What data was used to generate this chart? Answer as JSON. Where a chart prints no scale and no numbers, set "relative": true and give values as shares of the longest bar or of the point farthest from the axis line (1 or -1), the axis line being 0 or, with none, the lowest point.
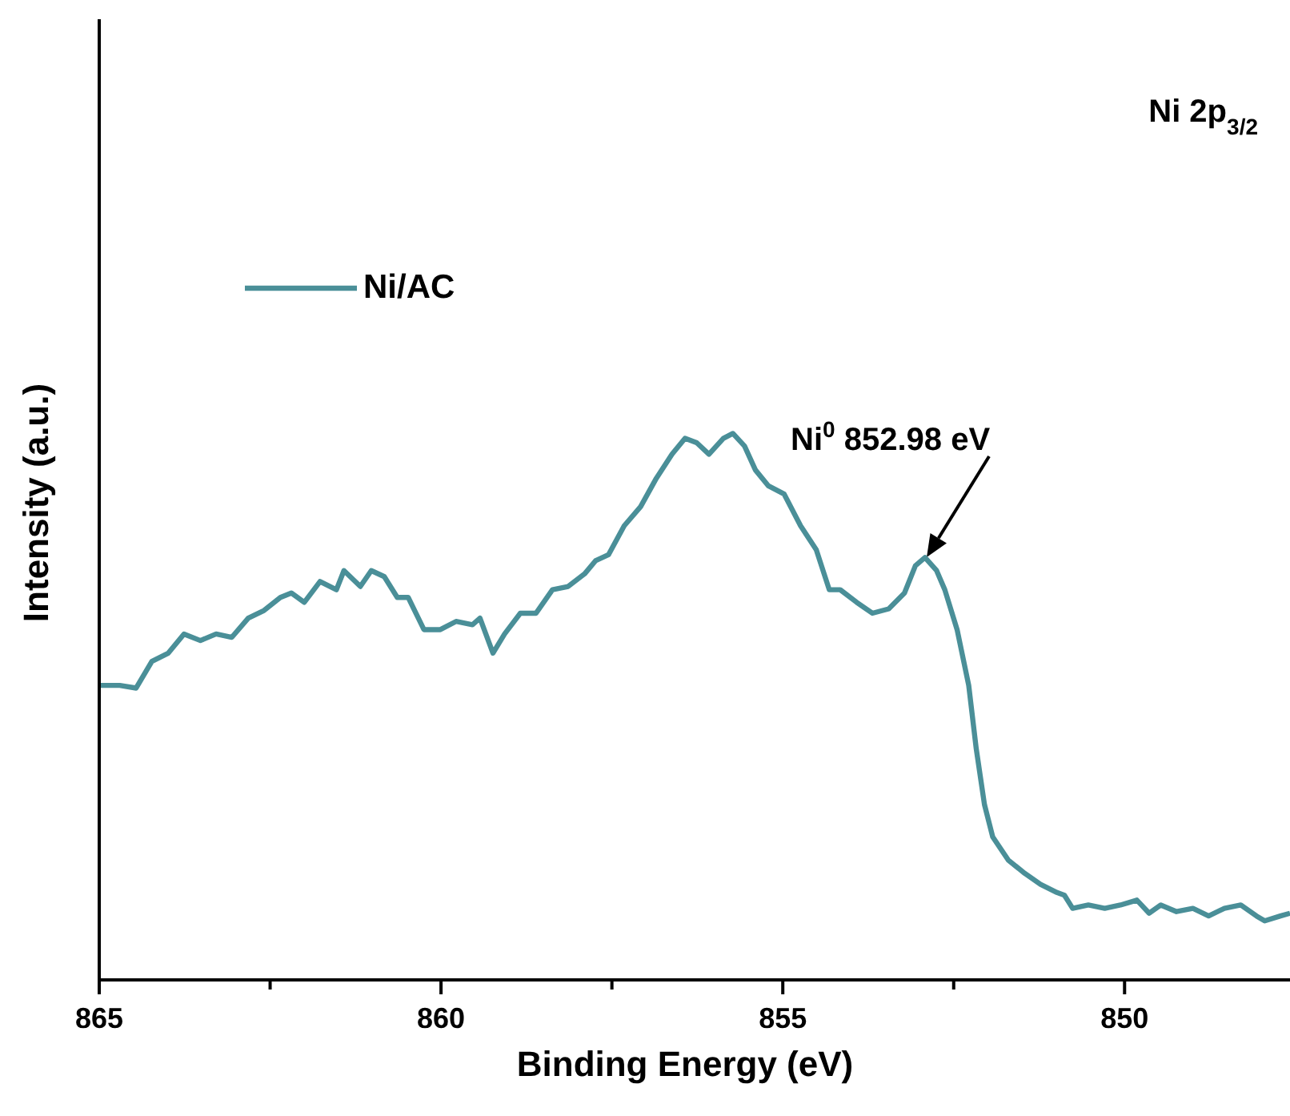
{
  "chart_data": {
    "type": "line",
    "title": "Ni 2p$_{3/2}$",
    "xlabel": "Binding Energy (eV)",
    "ylabel": "Intensity (a.u.)",
    "relative": true,
    "legend": "top left",
    "grid": false,
    "marker": "none",
    "line_style": "solid",
    "xlim": [
      865,
      847.58
    ],
    "xticks": [
      865,
      {
        "value": 862.5,
        "label": null
      },
      860,
      {
        "value": 857.5,
        "label": null
      },
      855,
      {
        "value": 852.5,
        "label": null
      },
      850
    ],
    "annotations": [
      "Ni$^{0}$ 852.98 eV"
    ],
    "series": [
      {
        "name": "Ni/AC",
        "color": "#4a8f98",
        "x": [
          865.0,
          864.7,
          864.46,
          864.23,
          863.99,
          863.76,
          863.52,
          863.29,
          863.06,
          862.82,
          862.59,
          862.35,
          862.19,
          862.0,
          861.77,
          861.53,
          861.42,
          861.18,
          861.02,
          860.83,
          860.64,
          860.48,
          860.25,
          860.01,
          859.78,
          859.54,
          859.43,
          859.24,
          859.07,
          858.84,
          858.61,
          858.37,
          858.14,
          857.9,
          857.74,
          857.55,
          857.32,
          857.08,
          856.85,
          856.62,
          856.43,
          856.26,
          856.08,
          855.87,
          855.73,
          855.56,
          855.4,
          855.21,
          854.98,
          854.74,
          854.51,
          854.32,
          854.16,
          853.92,
          853.69,
          853.45,
          853.22,
          853.06,
          852.92,
          852.75,
          852.63,
          852.45,
          852.28,
          852.17,
          852.05,
          851.93,
          851.7,
          851.46,
          851.23,
          850.99,
          850.88,
          850.76,
          850.53,
          850.29,
          850.06,
          849.82,
          849.64,
          849.47,
          849.24,
          849.0,
          848.77,
          848.54,
          848.3,
          848.07,
          847.95,
          847.72,
          847.58
        ],
        "values": [
          0.539,
          0.539,
          0.534,
          0.583,
          0.598,
          0.633,
          0.621,
          0.633,
          0.627,
          0.662,
          0.676,
          0.7,
          0.708,
          0.691,
          0.729,
          0.714,
          0.749,
          0.72,
          0.749,
          0.738,
          0.7,
          0.7,
          0.641,
          0.641,
          0.656,
          0.65,
          0.662,
          0.598,
          0.633,
          0.671,
          0.671,
          0.714,
          0.72,
          0.743,
          0.767,
          0.778,
          0.831,
          0.866,
          0.918,
          0.962,
          0.991,
          0.983,
          0.962,
          0.991,
          1,
          0.977,
          0.933,
          0.904,
          0.889,
          0.831,
          0.787,
          0.714,
          0.714,
          0.691,
          0.671,
          0.679,
          0.708,
          0.758,
          0.773,
          0.749,
          0.714,
          0.641,
          0.539,
          0.423,
          0.321,
          0.262,
          0.219,
          0.195,
          0.175,
          0.16,
          0.155,
          0.131,
          0.137,
          0.131,
          0.137,
          0.146,
          0.122,
          0.137,
          0.125,
          0.131,
          0.117,
          0.131,
          0.137,
          0.117,
          0.108,
          0.117,
          0.122
        ]
      }
    ]
  }
}
